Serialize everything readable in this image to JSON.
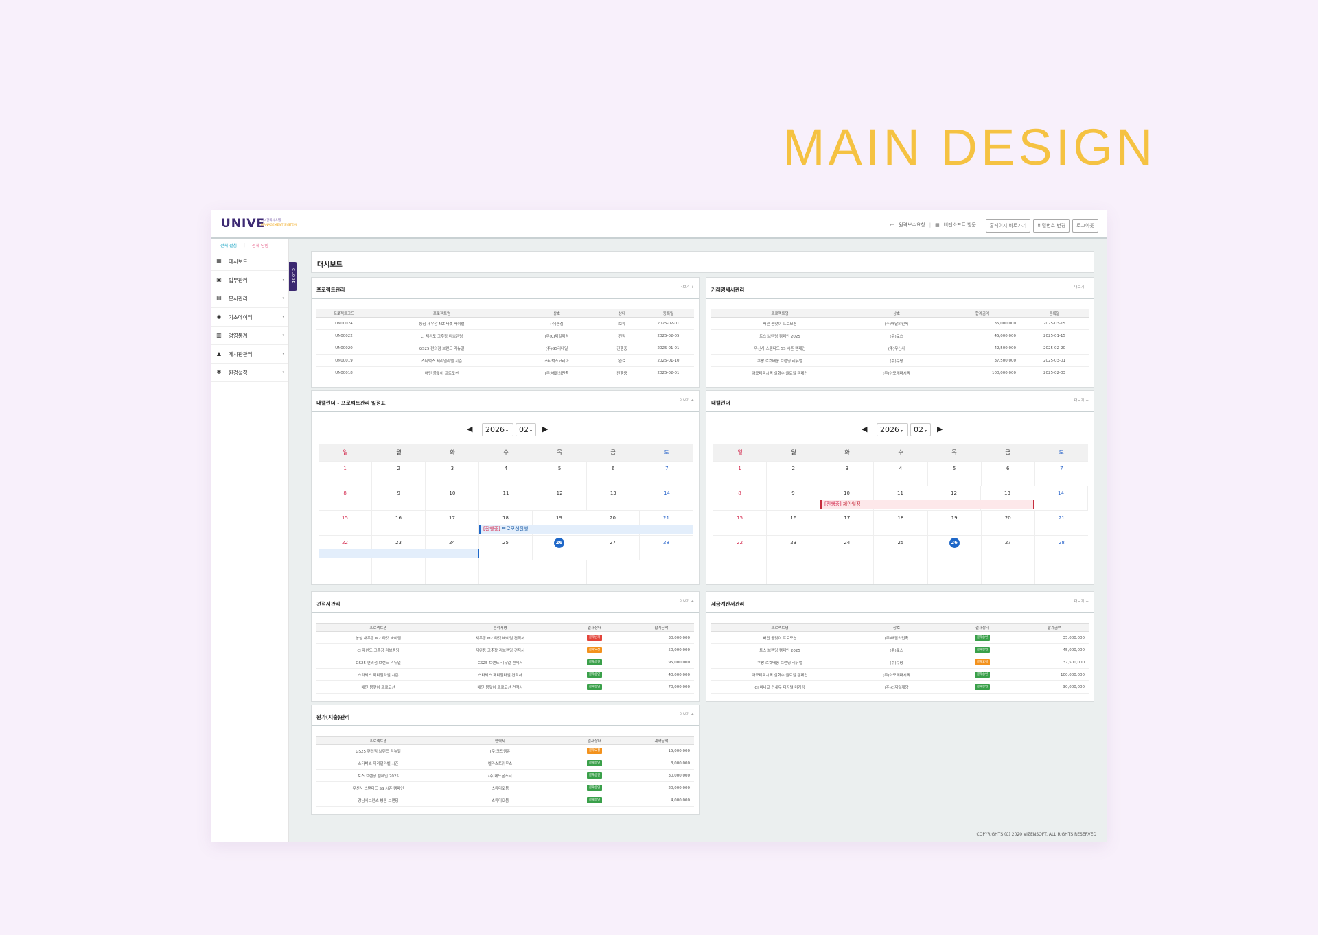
{
  "hero_title": "MAIN DESIGN",
  "logo": {
    "word": "UNIVE",
    "sub_ko": "시녀관리시스템",
    "sub_en": "MANAGEMENT SYSTEM"
  },
  "top_links": [
    "원격보수요청",
    "비젠소프트 방문"
  ],
  "top_buttons": [
    "홈페이지 바로가기",
    "비밀번호 변경",
    "로그아웃"
  ],
  "sidebar": {
    "open_label": "전체 펼침",
    "close_label": "전체 닫힘",
    "close_tab": "CLOSE",
    "items": [
      {
        "label": "대시보드",
        "icon": "dashboard-icon",
        "chevron": false
      },
      {
        "label": "업무관리",
        "icon": "briefcase-icon",
        "chevron": true
      },
      {
        "label": "문서관리",
        "icon": "document-icon",
        "chevron": true
      },
      {
        "label": "기초데이터",
        "icon": "users-icon",
        "chevron": true
      },
      {
        "label": "경영통계",
        "icon": "chart-icon",
        "chevron": true
      },
      {
        "label": "게시판관리",
        "icon": "board-icon",
        "chevron": true
      },
      {
        "label": "환경설정",
        "icon": "gear-icon",
        "chevron": true
      }
    ]
  },
  "dashboard_title": "대시보드",
  "more_label": "더보기 +",
  "project": {
    "title": "프로젝트관리",
    "headers": [
      "프로젝트코드",
      "프로젝트명",
      "상호",
      "상태",
      "등록일"
    ],
    "rows": [
      [
        "UN00024",
        "농심 새우깡 MZ 타겟 바이럴",
        "(주)농심",
        "보류",
        "2025-02-01"
      ],
      [
        "UN00022",
        "CJ 제완도 고추장 리브랜딩",
        "(주)CJ제일제당",
        "견적",
        "2025-02-05"
      ],
      [
        "UN00020",
        "GS25 편의점 브랜드 리뉴얼",
        "(주)GS리테일",
        "진행중",
        "2025-01-01"
      ],
      [
        "UN00019",
        "스타벅스 제리얼라벨 시즌",
        "스타벅스코리아",
        "완료",
        "2025-01-10"
      ],
      [
        "UN00018",
        "배민 봄맞이 프로모션",
        "(주)배달의민족",
        "진행중",
        "2025-02-01"
      ]
    ]
  },
  "transaction": {
    "title": "거래명세서관리",
    "headers": [
      "프로젝트명",
      "상호",
      "합계금액",
      "등록일"
    ],
    "rows": [
      [
        "배민 봄맞이 프로모션",
        "(주)배달의민족",
        "35,000,000",
        "2025-03-15"
      ],
      [
        "토스 브랜딩 캠페인 2025",
        "(주)토스",
        "45,000,000",
        "2025-01-15"
      ],
      [
        "무신사 스탠다드 SS 시즌 캠페인",
        "(주)무신사",
        "42,500,000",
        "2025-02-20"
      ],
      [
        "쿠팡 로켓배송 브랜딩 리뉴얼",
        "(주)쿠팡",
        "37,500,000",
        "2025-03-01"
      ],
      [
        "아모레퍼시픽 설화수 글로벌 캠페인",
        "(주)아모레퍼시픽",
        "100,000,000",
        "2025-02-03"
      ]
    ]
  },
  "calendar1": {
    "title": "내캘린더 - 프로젝트관리 일정표",
    "year": "2026",
    "month": "02",
    "days": [
      "일",
      "월",
      "화",
      "수",
      "목",
      "금",
      "토"
    ],
    "weeks": [
      [
        "1",
        "2",
        "3",
        "4",
        "5",
        "6",
        "7"
      ],
      [
        "8",
        "9",
        "10",
        "11",
        "12",
        "13",
        "14"
      ],
      [
        "15",
        "16",
        "17",
        "18",
        "19",
        "20",
        "21"
      ],
      [
        "22",
        "23",
        "24",
        "25",
        "26",
        "27",
        "28"
      ],
      [
        "",
        "",
        "",
        "",
        "",
        "",
        ""
      ]
    ],
    "today": "26",
    "event": {
      "tag": "[진행중]",
      "text": "프로모션진행"
    }
  },
  "calendar2": {
    "title": "내캘린더",
    "year": "2026",
    "month": "02",
    "days": [
      "일",
      "월",
      "화",
      "수",
      "목",
      "금",
      "토"
    ],
    "weeks": [
      [
        "1",
        "2",
        "3",
        "4",
        "5",
        "6",
        "7"
      ],
      [
        "8",
        "9",
        "10",
        "11",
        "12",
        "13",
        "14"
      ],
      [
        "15",
        "16",
        "17",
        "18",
        "19",
        "20",
        "21"
      ],
      [
        "22",
        "23",
        "24",
        "25",
        "26",
        "27",
        "28"
      ],
      [
        "",
        "",
        "",
        "",
        "",
        "",
        ""
      ]
    ],
    "today": "26",
    "event": {
      "tag": "[진행중]",
      "text": "제안일정"
    }
  },
  "estimate": {
    "title": "견적서관리",
    "headers": [
      "프로젝트명",
      "견적서명",
      "결재상태",
      "합계금액"
    ],
    "rows": [
      [
        "농심 새우깡 MZ 타겟 바이럴",
        "새우깡 MZ 타겟 바이럴 견적서",
        "결재반려",
        "red",
        "30,000,000"
      ],
      [
        "CJ 제완도 고추장 리브랜딩",
        "제완동 고추장 리브랜딩 견적서",
        "결재요청",
        "orange",
        "50,000,000"
      ],
      [
        "GS25 편의점 브랜드 리뉴얼",
        "GS25 브랜드 리뉴얼 견적서",
        "결재승인",
        "green",
        "95,000,000"
      ],
      [
        "스타벅스 제리얼라벨 시즌",
        "스타벅스 제리얼라벨 견적서",
        "결재승인",
        "green",
        "40,000,000"
      ],
      [
        "배민 봄맞이 프로모션",
        "배민 봄맞이 프로모션 견적서",
        "결재승인",
        "green",
        "70,000,000"
      ]
    ]
  },
  "tax": {
    "title": "세금계산서관리",
    "headers": [
      "프로젝트명",
      "상호",
      "결재상태",
      "합계금액"
    ],
    "rows": [
      [
        "배민 봄맞이 프로모션",
        "(주)배달의민족",
        "결재승인",
        "green",
        "35,000,000"
      ],
      [
        "토스 브랜딩 캠페인 2025",
        "(주)토스",
        "결재승인",
        "green",
        "45,000,000"
      ],
      [
        "쿠팡 로켓배송 브랜딩 리뉴얼",
        "(주)쿠팡",
        "결재요청",
        "orange",
        "37,500,000"
      ],
      [
        "아모레퍼시픽 설화수 글로벌 캠페인",
        "(주)아모레퍼시픽",
        "결재승인",
        "green",
        "100,000,000"
      ],
      [
        "CJ 비비고 건새우 디지털 마케팅",
        "(주)CJ제일제당",
        "결재승인",
        "green",
        "30,000,000"
      ]
    ]
  },
  "cost": {
    "title": "원가(지출)관리",
    "headers": [
      "프로젝트명",
      "협력사",
      "결재상태",
      "계약금액"
    ],
    "rows": [
      [
        "GS25 편의점 브랜드 리뉴얼",
        "(주)코드엠유",
        "결재요청",
        "orange",
        "15,000,000"
      ],
      [
        "스타벅스 제리얼라벨 시즌",
        "엘라스트워무스",
        "결재승인",
        "green",
        "3,000,000"
      ],
      [
        "토스 브랜딩 캠페인 2025",
        "(주)메드몬스터",
        "결재승인",
        "green",
        "30,000,000"
      ],
      [
        "무신사 스탠다드 SS 시즌 캠페인",
        "스튜디오봄",
        "결재승인",
        "green",
        "20,000,000"
      ],
      [
        "강남세브란스 병원 브랜딩",
        "스튜디오봄",
        "결재승인",
        "green",
        "4,000,000"
      ]
    ]
  },
  "footer": "COPYRIGHTS (C) 2020 VIZENSOFT. ALL RIGHTS RESERVED"
}
